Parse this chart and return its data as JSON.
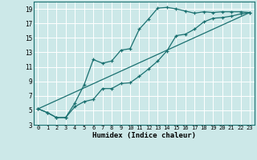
{
  "xlabel": "Humidex (Indice chaleur)",
  "bg_color": "#cce8e8",
  "grid_color": "#ffffff",
  "line_color": "#1a7070",
  "xlim": [
    -0.5,
    23.5
  ],
  "ylim": [
    3,
    20
  ],
  "xticks": [
    0,
    1,
    2,
    3,
    4,
    5,
    6,
    7,
    8,
    9,
    10,
    11,
    12,
    13,
    14,
    15,
    16,
    17,
    18,
    19,
    20,
    21,
    22,
    23
  ],
  "yticks": [
    3,
    5,
    7,
    9,
    11,
    13,
    15,
    17,
    19
  ],
  "series1_x": [
    0,
    1,
    2,
    3,
    4,
    5,
    6,
    7,
    8,
    9,
    10,
    11,
    12,
    13,
    14,
    15,
    16,
    17,
    18,
    19,
    20,
    21,
    22,
    23
  ],
  "series1_y": [
    5.2,
    4.7,
    4.0,
    4.0,
    6.0,
    8.5,
    12.0,
    11.5,
    11.8,
    13.3,
    13.5,
    16.2,
    17.6,
    19.1,
    19.2,
    19.0,
    18.7,
    18.4,
    18.6,
    18.5,
    18.6,
    18.6,
    18.6,
    18.5
  ],
  "series2_x": [
    0,
    1,
    2,
    3,
    4,
    5,
    6,
    7,
    8,
    9,
    10,
    11,
    12,
    13,
    14,
    15,
    16,
    17,
    18,
    19,
    20,
    21,
    22,
    23
  ],
  "series2_y": [
    5.2,
    4.7,
    4.0,
    4.0,
    5.5,
    6.2,
    6.5,
    8.0,
    8.0,
    8.7,
    8.8,
    9.7,
    10.7,
    11.8,
    13.2,
    15.3,
    15.5,
    16.2,
    17.2,
    17.7,
    17.8,
    18.0,
    18.3,
    18.5
  ],
  "series3_x": [
    0,
    23
  ],
  "series3_y": [
    5.2,
    18.5
  ]
}
